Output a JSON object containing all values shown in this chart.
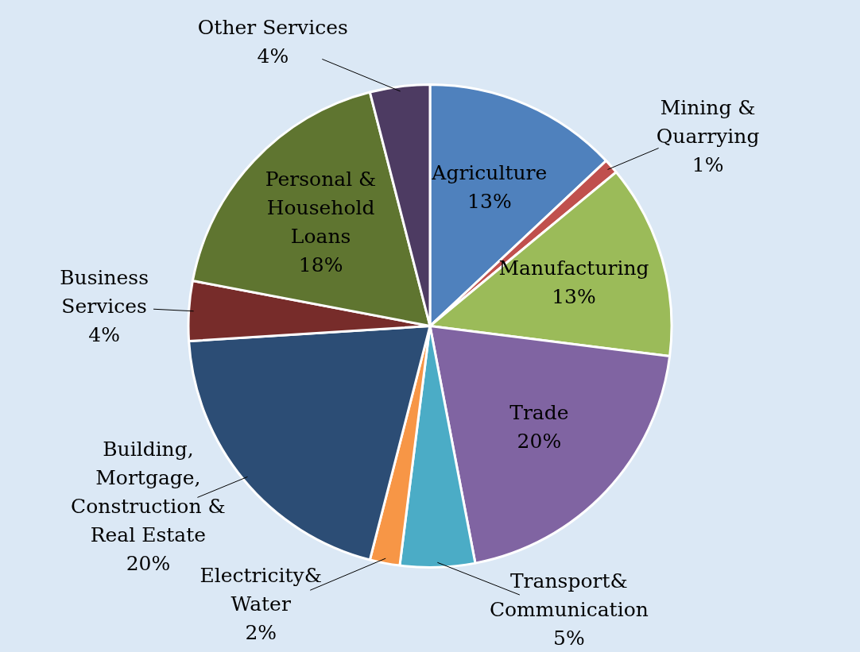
{
  "chart_data": {
    "type": "pie",
    "categories": [
      "Agriculture",
      "Mining & Quarrying",
      "Manufacturing",
      "Trade",
      "Transport& Communication",
      "Electricity& Water",
      "Building, Mortgage, Construction & Real Estate",
      "Business Services",
      "Personal & Household Loans",
      "Other Services"
    ],
    "values": [
      13,
      1,
      13,
      20,
      5,
      2,
      20,
      4,
      18,
      4
    ],
    "colors": [
      "#4f81bd",
      "#c0504d",
      "#9bbb59",
      "#8064a2",
      "#4bacc6",
      "#f79646",
      "#2c4d75",
      "#772c2a",
      "#5f7530",
      "#4d3b62"
    ],
    "value_labels": [
      "13%",
      "1%",
      "13%",
      "20%",
      "5%",
      "2%",
      "20%",
      "4%",
      "18%",
      "4%"
    ],
    "legend": false
  }
}
